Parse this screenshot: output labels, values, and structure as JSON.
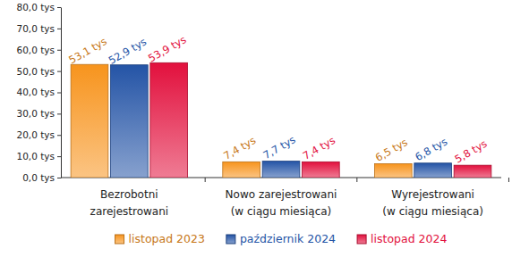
{
  "chart_data": {
    "type": "bar",
    "categories": [
      "Bezrobotni\nzarejestrowani",
      "Nowo zarejestrowani\n(w ciągu miesiąca)",
      "Wyrejestrowani\n(w ciągu miesiąca)"
    ],
    "series": [
      {
        "name": "listopad 2023",
        "color": "#f7941d",
        "values": [
          53.1,
          7.4,
          6.5
        ],
        "value_labels": [
          "53,1 tys",
          "7,4 tys",
          "6,5 tys"
        ]
      },
      {
        "name": "październik 2024",
        "color": "#2454a6",
        "values": [
          52.9,
          7.7,
          6.8
        ],
        "value_labels": [
          "52,9 tys",
          "7,7 tys",
          "6,8 tys"
        ]
      },
      {
        "name": "listopad 2024",
        "color": "#e2103d",
        "values": [
          53.9,
          7.4,
          5.8
        ],
        "value_labels": [
          "53,9 tys",
          "7,4 tys",
          "5,8 tys"
        ]
      }
    ],
    "ylim": [
      0,
      80
    ],
    "yticks": [
      {
        "value": 0,
        "label": "0,0 tys"
      },
      {
        "value": 10,
        "label": "10,0 tys"
      },
      {
        "value": 20,
        "label": "20,0 tys"
      },
      {
        "value": 30,
        "label": "30,0 tys"
      },
      {
        "value": 40,
        "label": "40,0 tys"
      },
      {
        "value": 50,
        "label": "50,0 tys"
      },
      {
        "value": 60,
        "label": "60,0 tys"
      },
      {
        "value": 70,
        "label": "70,0 tys"
      },
      {
        "value": 80,
        "label": "80,0 tys"
      }
    ],
    "grid": false,
    "data_labels": true,
    "legend": "bottom"
  }
}
